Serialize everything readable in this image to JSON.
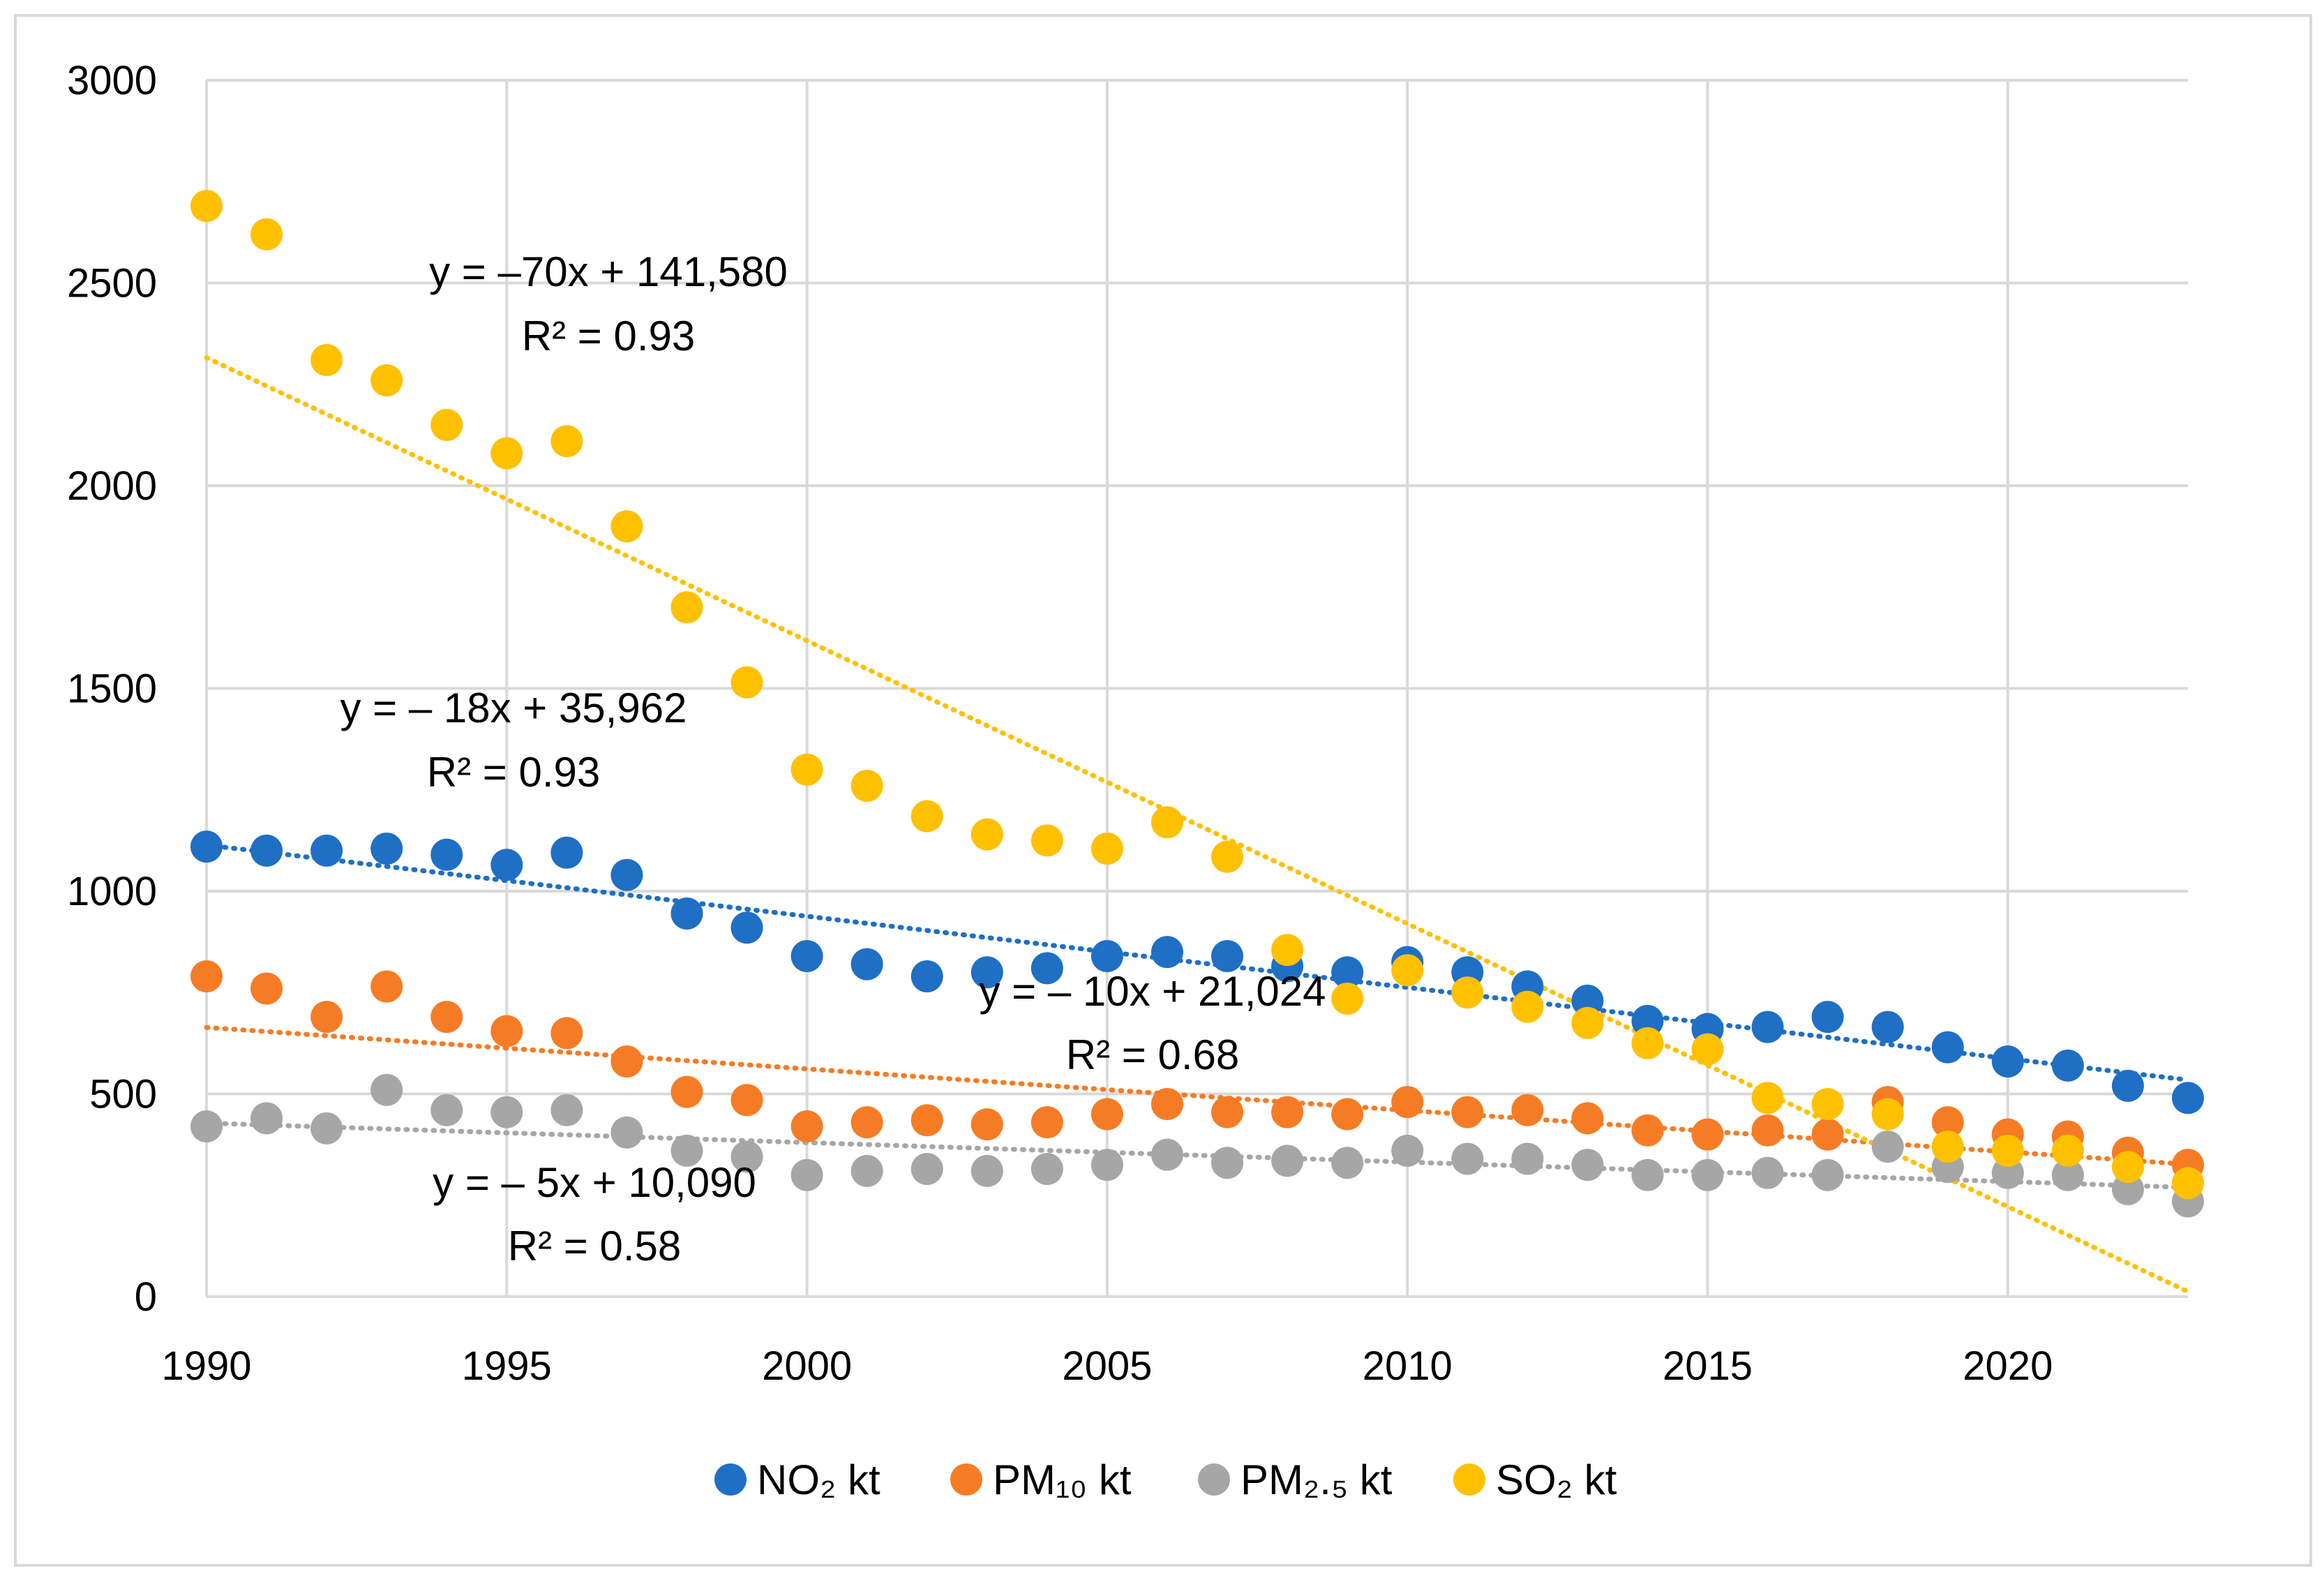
{
  "chart_data": {
    "type": "scatter",
    "title": "",
    "xlabel": "",
    "ylabel": "",
    "xlim": [
      1990,
      2023
    ],
    "ylim": [
      0,
      3000
    ],
    "x_ticks": [
      "1990",
      "1995",
      "2000",
      "2005",
      "2010",
      "2015",
      "2020"
    ],
    "y_ticks": [
      "0",
      "500",
      "1000",
      "1500",
      "2000",
      "2500",
      "3000"
    ],
    "grid": true,
    "legend_position": "bottom",
    "x": [
      1990,
      1991,
      1992,
      1993,
      1994,
      1995,
      1996,
      1997,
      1998,
      1999,
      2000,
      2001,
      2002,
      2003,
      2004,
      2005,
      2006,
      2007,
      2008,
      2009,
      2010,
      2011,
      2012,
      2013,
      2014,
      2015,
      2016,
      2017,
      2018,
      2019,
      2020,
      2021,
      2022,
      2023
    ],
    "series": [
      {
        "name": "NO₂ kt",
        "color": "#1f6fc5",
        "values": [
          1110,
          1100,
          1100,
          1105,
          1090,
          1065,
          1095,
          1040,
          945,
          910,
          840,
          820,
          790,
          800,
          810,
          840,
          850,
          840,
          815,
          800,
          825,
          800,
          765,
          730,
          680,
          660,
          665,
          690,
          665,
          615,
          580,
          570,
          520,
          490
        ],
        "trend": {
          "slope": -18,
          "intercept": 35962,
          "equation": "y = – 18x + 35,962",
          "r2": "R² = 0.93"
        }
      },
      {
        "name": "PM₁₀ kt",
        "color": "#f57c25",
        "values": [
          790,
          760,
          690,
          765,
          690,
          655,
          650,
          580,
          505,
          485,
          420,
          430,
          435,
          425,
          430,
          450,
          475,
          455,
          455,
          450,
          480,
          455,
          460,
          440,
          410,
          400,
          410,
          400,
          480,
          430,
          400,
          395,
          355,
          325
        ],
        "trend": {
          "slope": -10,
          "intercept": 21024,
          "equation": "y = – 10x + 21,024",
          "r2": "R² = 0.68"
        }
      },
      {
        "name": "PM₂.₅ kt",
        "color": "#a6a6a6",
        "values": [
          420,
          440,
          415,
          510,
          460,
          455,
          460,
          405,
          360,
          345,
          300,
          310,
          315,
          310,
          315,
          325,
          350,
          330,
          335,
          330,
          360,
          340,
          340,
          325,
          300,
          300,
          305,
          300,
          370,
          320,
          305,
          300,
          265,
          235
        ],
        "trend": {
          "slope": -5,
          "intercept": 10090,
          "equation": "y = – 5x + 10,090",
          "r2": "R² = 0.58"
        }
      },
      {
        "name": "SO₂ kt",
        "color": "#ffc000",
        "values": [
          2690,
          2620,
          2310,
          2260,
          2150,
          2080,
          2110,
          1900,
          1700,
          1515,
          1300,
          1260,
          1185,
          1140,
          1125,
          1105,
          1170,
          1085,
          855,
          735,
          805,
          750,
          715,
          675,
          625,
          610,
          490,
          475,
          450,
          370,
          360,
          360,
          320,
          280
        ],
        "trend": {
          "slope": -70,
          "intercept": 141580,
          "equation": "y = –70x + 141,580",
          "r2": "R² = 0.93"
        }
      }
    ]
  }
}
